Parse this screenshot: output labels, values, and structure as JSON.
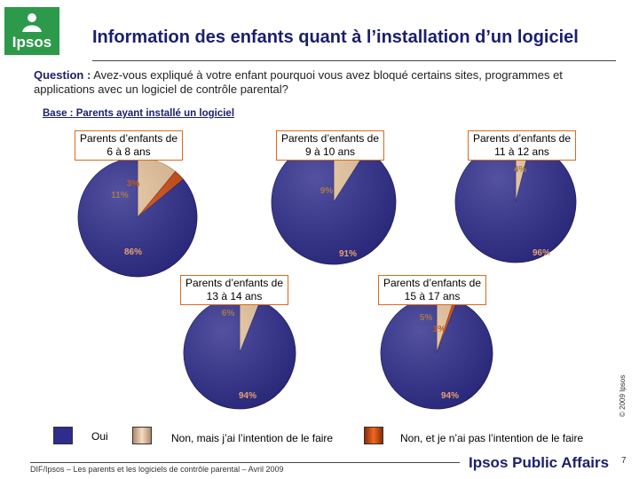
{
  "header": {
    "logo_text": "Ipsos",
    "title": "Information des enfants quant à l’installation d’un logiciel"
  },
  "question": {
    "label": "Question :",
    "text": "Avez-vous expliqué à votre enfant pourquoi vous avez bloqué certains sites, programmes et applications avec un logiciel de contrôle parental?"
  },
  "base": "Base : Parents ayant installé un logiciel",
  "colors": {
    "oui": "#2e2c8c",
    "non_intention": "#e7c39a",
    "non_pas_intention": "#d24a0e"
  },
  "chart_data": {
    "type": "pie",
    "categories": [
      "Oui",
      "Non, mais j’ai l’intention de le faire",
      "Non, et je n’ai pas l’intention de le faire"
    ],
    "pies": [
      {
        "name": "Parents d’enfants de 6 à 8 ans",
        "values": [
          86,
          11,
          3
        ],
        "labels": [
          "86%",
          "11%",
          "3%"
        ]
      },
      {
        "name": "Parents d’enfants de 9 à 10 ans",
        "values": [
          91,
          9,
          0
        ],
        "labels": [
          "91%",
          "9%",
          ""
        ]
      },
      {
        "name": "Parents d’enfants de 11 à 12 ans",
        "values": [
          96,
          4,
          0
        ],
        "labels": [
          "96%",
          "4%",
          ""
        ]
      },
      {
        "name": "Parents d’enfants de 13 à 14 ans",
        "values": [
          94,
          6,
          0
        ],
        "labels": [
          "94%",
          "6%",
          ""
        ]
      },
      {
        "name": "Parents d’enfants de 15 à 17 ans",
        "values": [
          94,
          5,
          1
        ],
        "labels": [
          "94%",
          "5%",
          "1%"
        ]
      }
    ]
  },
  "legend": {
    "oui": "Oui",
    "non_intention": "Non, mais j’ai l’intention de le faire",
    "non_pas_intention": "Non, et je n’ai pas l’intention de le faire"
  },
  "footer": {
    "source": "DIF/Ipsos – Les parents et les logiciels de contrôle parental – Avril 2009",
    "brand": "Ipsos Public Affairs",
    "page": "7",
    "copyright": "© 2009 Ipsos"
  }
}
